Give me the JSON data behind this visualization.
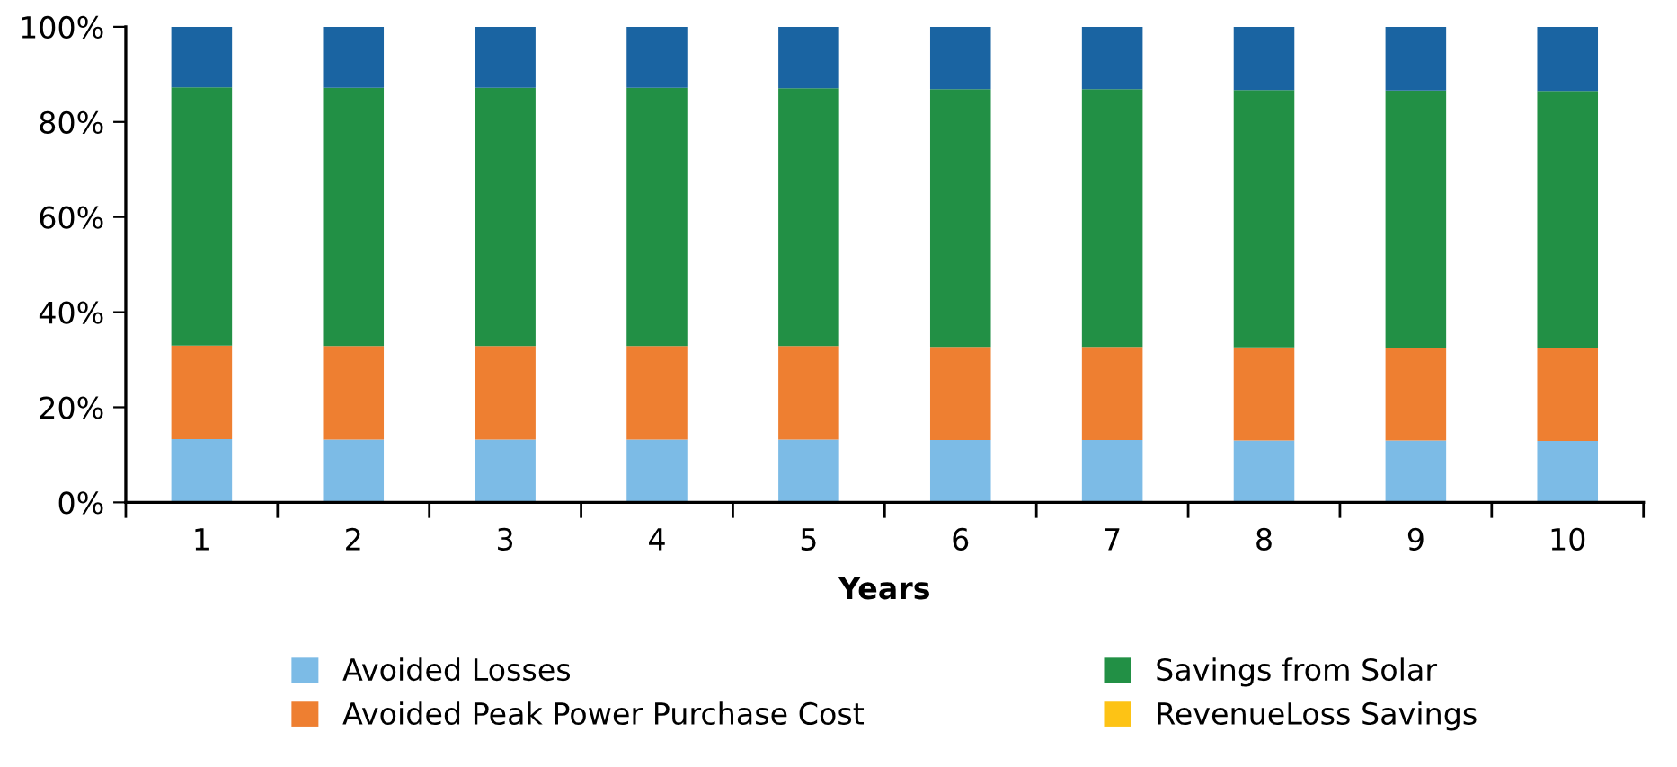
{
  "chart_data": {
    "type": "bar",
    "stacked": true,
    "xlabel": "Years",
    "categories": [
      "1",
      "2",
      "3",
      "4",
      "5",
      "6",
      "7",
      "8",
      "9",
      "10"
    ],
    "series": [
      {
        "name": "Avoided Losses",
        "color": "#7cbbe6",
        "values": [
          13.3,
          13.2,
          13.2,
          13.2,
          13.2,
          13.1,
          13.1,
          13.0,
          13.0,
          12.9
        ]
      },
      {
        "name": "Avoided Peak Power Purchase Cost",
        "color": "#ee7f31",
        "values": [
          19.7,
          19.7,
          19.7,
          19.7,
          19.7,
          19.6,
          19.6,
          19.6,
          19.5,
          19.5
        ]
      },
      {
        "name": "Savings from Solar",
        "color": "#229045",
        "values": [
          54.3,
          54.3,
          54.3,
          54.3,
          54.2,
          54.2,
          54.2,
          54.1,
          54.1,
          54.1
        ]
      },
      {
        "name": "RevenueLoss Savings",
        "color": "#fdc315",
        "values": [
          0,
          0,
          0,
          0,
          0,
          0,
          0,
          0,
          0,
          0
        ]
      },
      {
        "color": "#1a64a2",
        "values": [
          12.7,
          12.8,
          12.8,
          12.8,
          12.9,
          13.1,
          13.1,
          13.3,
          13.4,
          13.5
        ]
      }
    ],
    "ylim": [
      0,
      100
    ],
    "yticks": [
      {
        "value": 0,
        "label": "0%"
      },
      {
        "value": 20,
        "label": "20%"
      },
      {
        "value": 40,
        "label": "40%"
      },
      {
        "value": 60,
        "label": "60%"
      },
      {
        "value": 80,
        "label": "80%"
      },
      {
        "value": 100,
        "label": "100%"
      }
    ],
    "grid": false,
    "legend": "bottom"
  }
}
